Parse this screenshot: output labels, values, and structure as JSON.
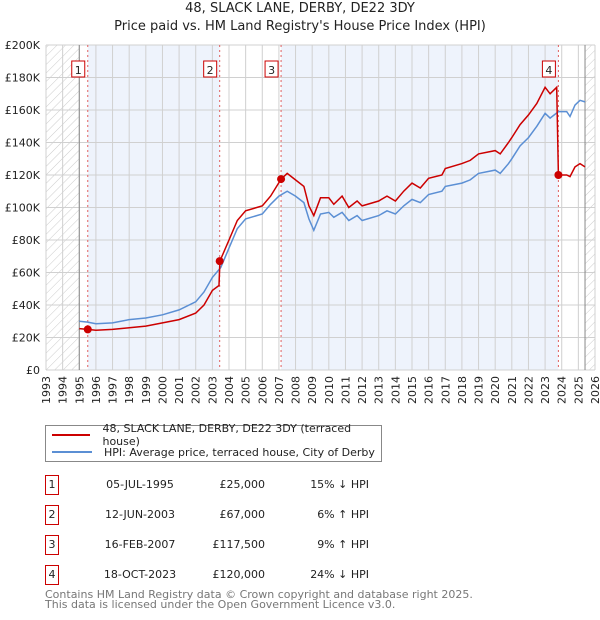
{
  "title": "48, SLACK LANE, DERBY, DE22 3DY",
  "subtitle": "Price paid vs. HM Land Registry's House Price Index (HPI)",
  "chart_data": {
    "type": "line",
    "xlim": [
      1993,
      2026
    ],
    "ylim": [
      0,
      200000
    ],
    "x_ticks": [
      "1993",
      "1994",
      "1995",
      "1996",
      "1997",
      "1998",
      "1999",
      "2000",
      "2001",
      "2002",
      "2003",
      "2004",
      "2005",
      "2006",
      "2007",
      "2008",
      "2009",
      "2010",
      "2011",
      "2012",
      "2013",
      "2014",
      "2015",
      "2016",
      "2017",
      "2018",
      "2019",
      "2020",
      "2021",
      "2022",
      "2023",
      "2024",
      "2025",
      "2026"
    ],
    "y_ticks": [
      {
        "v": 0,
        "label": "£0"
      },
      {
        "v": 20000,
        "label": "£20K"
      },
      {
        "v": 40000,
        "label": "£40K"
      },
      {
        "v": 60000,
        "label": "£60K"
      },
      {
        "v": 80000,
        "label": "£80K"
      },
      {
        "v": 100000,
        "label": "£100K"
      },
      {
        "v": 120000,
        "label": "£120K"
      },
      {
        "v": 140000,
        "label": "£140K"
      },
      {
        "v": 160000,
        "label": "£160K"
      },
      {
        "v": 180000,
        "label": "£180K"
      },
      {
        "v": 200000,
        "label": "£200K"
      }
    ],
    "series": [
      {
        "name": "48, SLACK LANE, DERBY, DE22 3DY (terraced house)",
        "color": "#cc0000",
        "x": [
          1995,
          1995.5,
          1996,
          1997,
          1998,
          1999,
          2000,
          2001,
          2002,
          2002.5,
          2003,
          2003.4,
          2003.45,
          2004,
          2004.5,
          2005,
          2006,
          2006.5,
          2007.13,
          2007.5,
          2008,
          2008.5,
          2008.8,
          2009.1,
          2009.5,
          2010,
          2010.3,
          2010.8,
          2011.2,
          2011.7,
          2012,
          2013,
          2013.5,
          2014,
          2014.5,
          2015,
          2015.5,
          2016,
          2016.8,
          2017,
          2018,
          2018.5,
          2019,
          2020,
          2020.3,
          2020.8,
          2021,
          2021.5,
          2022,
          2022.5,
          2023,
          2023.3,
          2023.7,
          2023.8,
          2024.3,
          2024.5,
          2024.8,
          2025.1,
          2025.4
        ],
        "y": [
          25500,
          25000,
          24500,
          25000,
          26000,
          27000,
          29000,
          31000,
          35000,
          40000,
          49000,
          52000,
          67000,
          80000,
          92000,
          98000,
          101000,
          107000,
          117500,
          121000,
          117000,
          113000,
          101000,
          95000,
          106000,
          106000,
          102000,
          107000,
          100000,
          104000,
          101000,
          104000,
          107000,
          104000,
          110000,
          115000,
          112000,
          118000,
          120000,
          124000,
          127000,
          129000,
          133000,
          135000,
          133000,
          140000,
          143000,
          151000,
          157000,
          164000,
          174000,
          170000,
          174000,
          120000,
          120000,
          119000,
          125000,
          127000,
          125000
        ]
      },
      {
        "name": "HPI: Average price, terraced house, City of Derby",
        "color": "#5b8fd4",
        "x": [
          1995,
          1995.5,
          1996,
          1997,
          1998,
          1999,
          2000,
          2001,
          2002,
          2002.5,
          2003,
          2003.5,
          2004,
          2004.5,
          2005,
          2006,
          2006.5,
          2007,
          2007.5,
          2008,
          2008.5,
          2008.8,
          2009.1,
          2009.5,
          2010,
          2010.3,
          2010.8,
          2011.2,
          2011.7,
          2012,
          2013,
          2013.5,
          2014,
          2014.5,
          2015,
          2015.5,
          2016,
          2016.8,
          2017,
          2018,
          2018.5,
          2019,
          2020,
          2020.3,
          2020.8,
          2021,
          2021.5,
          2022,
          2022.5,
          2023,
          2023.3,
          2023.8,
          2024.3,
          2024.5,
          2024.8,
          2025.1,
          2025.4
        ],
        "y": [
          30000,
          29500,
          28500,
          29000,
          31000,
          32000,
          34000,
          37000,
          42000,
          48000,
          57000,
          63000,
          75000,
          87000,
          93000,
          96000,
          102000,
          107000,
          110000,
          107000,
          103000,
          93000,
          86000,
          96000,
          97000,
          94000,
          97000,
          92000,
          95000,
          92000,
          95000,
          98000,
          96000,
          101000,
          105000,
          103000,
          108000,
          110000,
          113000,
          115000,
          117000,
          121000,
          123000,
          121000,
          127000,
          130000,
          138000,
          143000,
          150000,
          158000,
          155000,
          159000,
          159000,
          156000,
          163000,
          166000,
          165000
        ]
      }
    ],
    "sales": [
      {
        "id": "1",
        "x": 1995.51,
        "y": 25000
      },
      {
        "id": "2",
        "x": 2003.44,
        "y": 67000
      },
      {
        "id": "3",
        "x": 2007.13,
        "y": 117500
      },
      {
        "id": "4",
        "x": 2023.8,
        "y": 120000
      }
    ],
    "hatched_ranges": [
      [
        1993,
        1995
      ],
      [
        2025.4,
        2026
      ]
    ],
    "shaded_ranges": [
      [
        1995.51,
        2003.44
      ],
      [
        2007.13,
        2023.8
      ]
    ]
  },
  "legend": {
    "red": "48, SLACK LANE, DERBY, DE22 3DY (terraced house)",
    "blue": "HPI: Average price, terraced house, City of Derby"
  },
  "transactions": [
    {
      "num": "1",
      "date": "05-JUL-1995",
      "price": "£25,000",
      "hpi": "15% ↓ HPI"
    },
    {
      "num": "2",
      "date": "12-JUN-2003",
      "price": "£67,000",
      "hpi": "6% ↑ HPI"
    },
    {
      "num": "3",
      "date": "16-FEB-2007",
      "price": "£117,500",
      "hpi": "9% ↑ HPI"
    },
    {
      "num": "4",
      "date": "18-OCT-2023",
      "price": "£120,000",
      "hpi": "24% ↓ HPI"
    }
  ],
  "footer": {
    "line1": "Contains HM Land Registry data © Crown copyright and database right 2025.",
    "line2": "This data is licensed under the Open Government Licence v3.0."
  }
}
